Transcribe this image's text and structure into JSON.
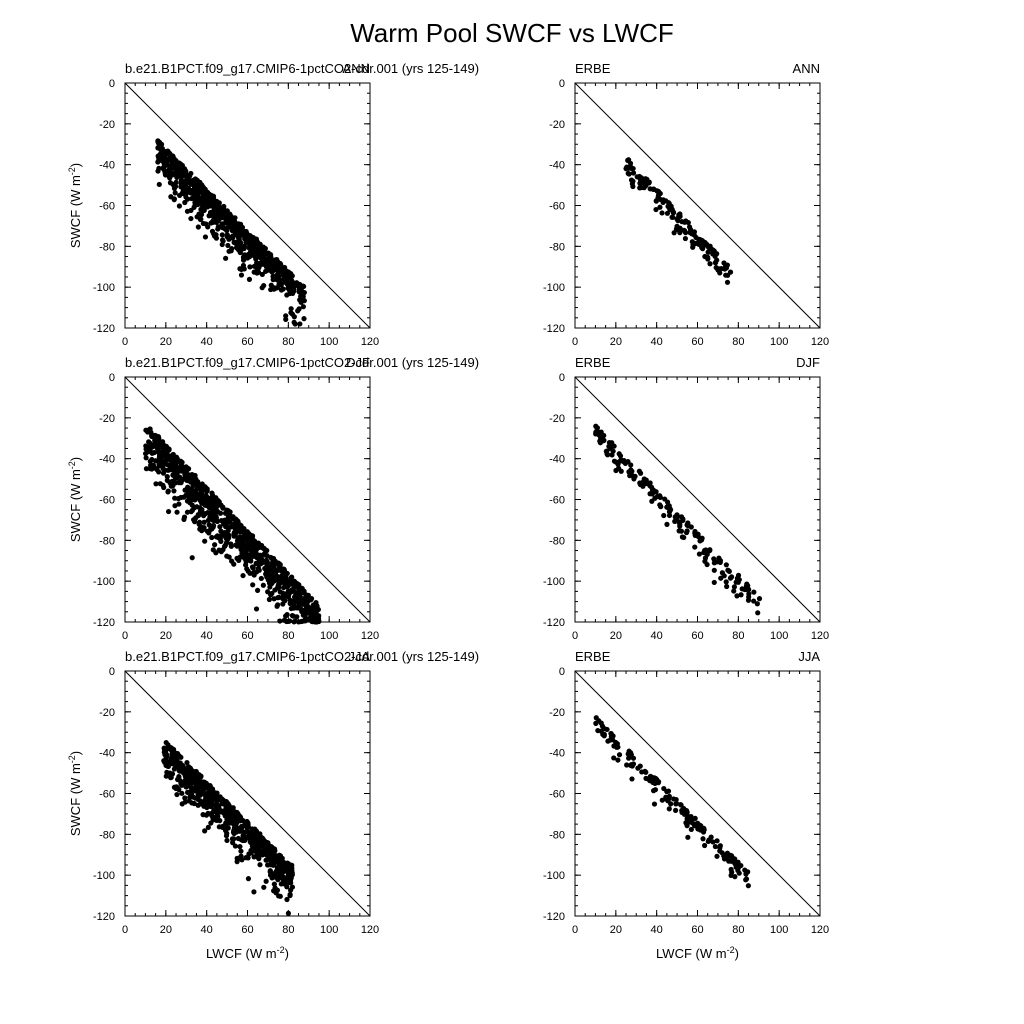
{
  "figure": {
    "title": "Warm Pool SWCF vs LWCF"
  },
  "chart_data": [
    {
      "type": "scatter",
      "title": "b.e21.B1PCT.f09_g17.CMIP6-1pctCO2-cdr.001 (yrs 125-149)",
      "season": "ANN",
      "xlabel": "",
      "ylabel": "SWCF (W m-2)",
      "xlim": [
        0,
        120
      ],
      "ylim": [
        -120,
        0
      ],
      "xticks": [
        "0",
        "20",
        "40",
        "60",
        "80",
        "100",
        "120"
      ],
      "yticks": [
        "0",
        "-20",
        "-40",
        "-60",
        "-80",
        "-100",
        "-120"
      ],
      "reference_line": [
        [
          0,
          0
        ],
        [
          120,
          -120
        ]
      ],
      "scatter_model": {
        "n": 700,
        "seed": 101,
        "x_range": [
          16,
          88
        ],
        "slope": -1.0,
        "intercept": -12,
        "spread": 16,
        "seed_note": "dense cloud"
      }
    },
    {
      "type": "scatter",
      "title": "ERBE",
      "season": "ANN",
      "xlabel": "",
      "ylabel": "",
      "xlim": [
        0,
        120
      ],
      "ylim": [
        -120,
        0
      ],
      "xticks": [
        "0",
        "20",
        "40",
        "60",
        "80",
        "100",
        "120"
      ],
      "yticks": [
        "0",
        "-20",
        "-40",
        "-60",
        "-80",
        "-100",
        "-120"
      ],
      "reference_line": [
        [
          0,
          0
        ],
        [
          120,
          -120
        ]
      ],
      "scatter_model": {
        "n": 150,
        "seed": 202,
        "x_range": [
          24,
          77
        ],
        "slope": -1.05,
        "intercept": -10,
        "spread": 9
      }
    },
    {
      "type": "scatter",
      "title": "b.e21.B1PCT.f09_g17.CMIP6-1pctCO2-cdr.001 (yrs 125-149)",
      "season": "DJF",
      "xlabel": "",
      "ylabel": "SWCF (W m-2)",
      "xlim": [
        0,
        120
      ],
      "ylim": [
        -120,
        0
      ],
      "xticks": [
        "0",
        "20",
        "40",
        "60",
        "80",
        "100",
        "120"
      ],
      "yticks": [
        "0",
        "-20",
        "-40",
        "-60",
        "-80",
        "-100",
        "-120"
      ],
      "reference_line": [
        [
          0,
          0
        ],
        [
          120,
          -120
        ]
      ],
      "scatter_model": {
        "n": 900,
        "seed": 303,
        "x_range": [
          10,
          95
        ],
        "slope": -1.05,
        "intercept": -12,
        "spread": 20
      }
    },
    {
      "type": "scatter",
      "title": "ERBE",
      "season": "DJF",
      "xlabel": "",
      "ylabel": "",
      "xlim": [
        0,
        120
      ],
      "ylim": [
        -120,
        0
      ],
      "xticks": [
        "0",
        "20",
        "40",
        "60",
        "80",
        "100",
        "120"
      ],
      "yticks": [
        "0",
        "-20",
        "-40",
        "-60",
        "-80",
        "-100",
        "-120"
      ],
      "reference_line": [
        [
          0,
          0
        ],
        [
          120,
          -120
        ]
      ],
      "scatter_model": {
        "n": 180,
        "seed": 404,
        "x_range": [
          10,
          91
        ],
        "slope": -1.05,
        "intercept": -13,
        "spread": 10
      }
    },
    {
      "type": "scatter",
      "title": "b.e21.B1PCT.f09_g17.CMIP6-1pctCO2-cdr.001 (yrs 125-149)",
      "season": "JJA",
      "xlabel": "LWCF (W m-2)",
      "ylabel": "SWCF (W m-2)",
      "xlim": [
        0,
        120
      ],
      "ylim": [
        -120,
        0
      ],
      "xticks": [
        "0",
        "20",
        "40",
        "60",
        "80",
        "100",
        "120"
      ],
      "yticks": [
        "0",
        "-20",
        "-40",
        "-60",
        "-80",
        "-100",
        "-120"
      ],
      "reference_line": [
        [
          0,
          0
        ],
        [
          120,
          -120
        ]
      ],
      "scatter_model": {
        "n": 650,
        "seed": 505,
        "x_range": [
          19,
          82
        ],
        "slope": -0.98,
        "intercept": -15,
        "spread": 16
      }
    },
    {
      "type": "scatter",
      "title": "ERBE",
      "season": "JJA",
      "xlabel": "LWCF (W m-2)",
      "ylabel": "",
      "xlim": [
        0,
        120
      ],
      "ylim": [
        -120,
        0
      ],
      "xticks": [
        "0",
        "20",
        "40",
        "60",
        "80",
        "100",
        "120"
      ],
      "yticks": [
        "0",
        "-20",
        "-40",
        "-60",
        "-80",
        "-100",
        "-120"
      ],
      "reference_line": [
        [
          0,
          0
        ],
        [
          120,
          -120
        ]
      ],
      "scatter_model": {
        "n": 160,
        "seed": 606,
        "x_range": [
          10,
          86
        ],
        "slope": -1.02,
        "intercept": -12,
        "spread": 8
      }
    }
  ]
}
